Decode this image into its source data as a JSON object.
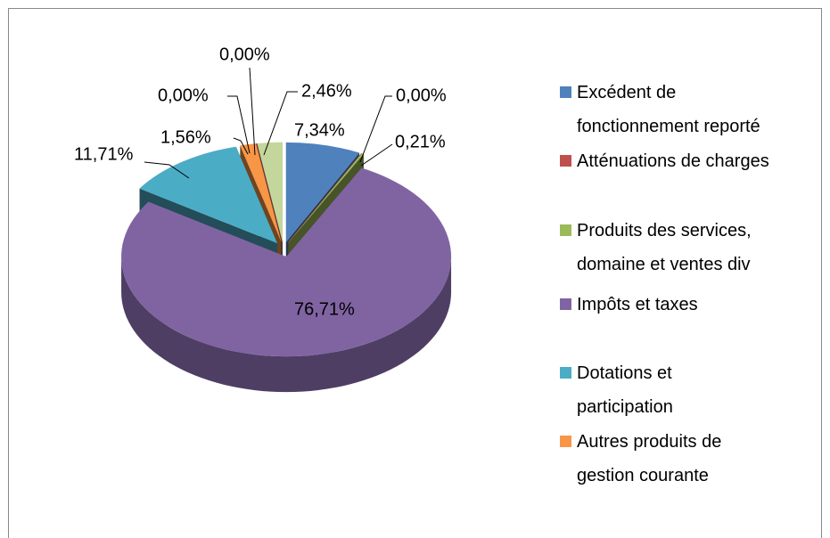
{
  "chart_data": {
    "type": "pie3d",
    "categories": [
      "Excédent de fonctionnement reporté",
      "Atténuations de charges",
      "Produits des services, domaine et ventes div",
      "Impôts et taxes",
      "Dotations et participation",
      "Autres produits de gestion courante",
      null,
      null,
      null
    ],
    "values": [
      7.34,
      0.0,
      0.21,
      76.71,
      11.71,
      1.56,
      0.0,
      0.0,
      2.46
    ],
    "value_labels": [
      "7,34%",
      "0,00%",
      "0,21%",
      "76,71%",
      "11,71%",
      "1,56%",
      "0,00%",
      "0,00%",
      "2,46%"
    ],
    "colors": [
      "#4f81bd",
      "#c0504d",
      "#9bbb59",
      "#8064a2",
      "#4bacc6",
      "#f79646",
      "#2c4d75",
      "#772c2a",
      "#c3d69b"
    ],
    "legend": "right"
  }
}
